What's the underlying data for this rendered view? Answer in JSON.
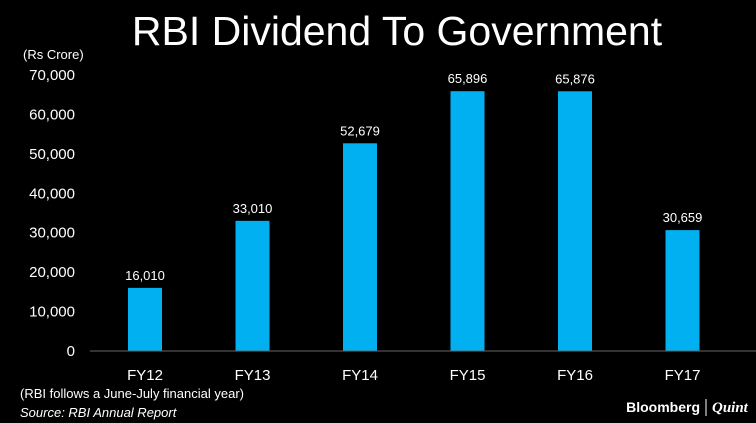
{
  "chart_data": {
    "type": "bar",
    "title": "RBI Dividend To Government",
    "unit_label": "(Rs Crore)",
    "categories": [
      "FY12",
      "FY13",
      "FY14",
      "FY15",
      "FY16",
      "FY17"
    ],
    "values": [
      16010,
      33010,
      52679,
      65896,
      65876,
      30659
    ],
    "value_labels": [
      "16,010",
      "33,010",
      "52,679",
      "65,896",
      "65,876",
      "30,659"
    ],
    "ylim": [
      0,
      70000
    ],
    "yticks": [
      0,
      10000,
      20000,
      30000,
      40000,
      50000,
      60000,
      70000
    ],
    "ytick_labels": [
      "0",
      "10,000",
      "20,000",
      "30,000",
      "40,000",
      "50,000",
      "60,000",
      "70,000"
    ],
    "xlabel": "",
    "ylabel": "",
    "grid": false,
    "legend": "none",
    "bar_color": "#00b0f0"
  },
  "footer": {
    "note": "(RBI follows a June-July financial year)",
    "source": "Source: RBI Annual Report",
    "brand_primary": "Bloomberg",
    "brand_secondary": "Quint"
  },
  "colors": {
    "background": "#000000",
    "text": "#ffffff",
    "axis": "#666666",
    "bar": "#00b0f0"
  }
}
